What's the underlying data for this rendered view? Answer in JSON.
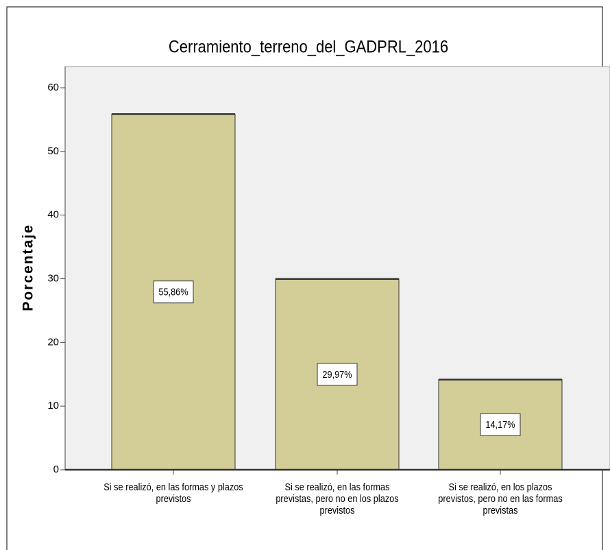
{
  "chart_data": {
    "type": "bar",
    "title": "Cerramiento_terreno_del_GADPRL_2016",
    "y_label": "Porcentaje",
    "categories": [
      "Si se realizó, en las formas y plazos previstos",
      "Si se realizó, en las formas previstas, pero no en los plazos previstos",
      "Si se realizó, en los plazos previstos, pero no en las formas previstas"
    ],
    "values": [
      55.86,
      29.97,
      14.17
    ],
    "value_labels": [
      "55,86%",
      "29,97%",
      "14,17%"
    ],
    "color": "#d3ce98",
    "ylim": [
      0,
      60
    ],
    "yticks": [
      0,
      10,
      20,
      30,
      40,
      50,
      60
    ]
  }
}
